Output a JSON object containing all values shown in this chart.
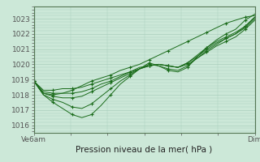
{
  "title": "Pression niveau de la mer( hPa )",
  "xlim": [
    0,
    48
  ],
  "ylim": [
    1015.5,
    1023.8
  ],
  "yticks": [
    1016,
    1017,
    1018,
    1019,
    1020,
    1021,
    1022,
    1023
  ],
  "xtick_positions": [
    0,
    48
  ],
  "xtick_labels": [
    "Ve6am",
    "Dim"
  ],
  "bg_color": "#cce8d8",
  "grid_color": "#aacfbc",
  "line_color": "#1a6b1a",
  "marker_color": "#1a6b1a",
  "series": [
    [
      1018.9,
      1018.1,
      1018.0,
      1018.1,
      1018.3,
      1018.6,
      1018.9,
      1019.1,
      1019.3,
      1019.6,
      1019.8,
      1020.0,
      1020.3,
      1020.6,
      1020.9,
      1021.2,
      1021.5,
      1021.8,
      1022.1,
      1022.4,
      1022.7,
      1022.9,
      1023.1,
      1023.2
    ],
    [
      1018.9,
      1018.0,
      1017.5,
      1017.1,
      1016.7,
      1016.5,
      1016.7,
      1017.3,
      1018.0,
      1018.7,
      1019.2,
      1019.7,
      1020.1,
      1019.9,
      1019.6,
      1019.5,
      1019.8,
      1020.5,
      1021.1,
      1021.6,
      1022.0,
      1022.3,
      1022.9,
      1023.3
    ],
    [
      1018.9,
      1018.0,
      1017.7,
      1017.5,
      1017.2,
      1017.1,
      1017.4,
      1017.9,
      1018.4,
      1018.9,
      1019.3,
      1019.7,
      1020.0,
      1019.9,
      1019.7,
      1019.6,
      1019.9,
      1020.4,
      1020.9,
      1021.3,
      1021.7,
      1022.0,
      1022.5,
      1023.1
    ],
    [
      1018.9,
      1018.1,
      1017.9,
      1017.8,
      1017.8,
      1017.9,
      1018.2,
      1018.5,
      1018.8,
      1019.1,
      1019.4,
      1019.7,
      1019.9,
      1020.0,
      1019.9,
      1019.8,
      1020.1,
      1020.6,
      1021.1,
      1021.5,
      1021.8,
      1022.1,
      1022.5,
      1023.1
    ],
    [
      1018.9,
      1018.2,
      1018.1,
      1018.1,
      1018.1,
      1018.2,
      1018.4,
      1018.7,
      1018.9,
      1019.2,
      1019.5,
      1019.7,
      1019.9,
      1020.0,
      1019.9,
      1019.8,
      1020.1,
      1020.5,
      1021.0,
      1021.4,
      1021.7,
      1022.0,
      1022.4,
      1023.0
    ],
    [
      1018.9,
      1018.3,
      1018.3,
      1018.4,
      1018.4,
      1018.5,
      1018.7,
      1018.9,
      1019.1,
      1019.3,
      1019.5,
      1019.8,
      1019.9,
      1020.0,
      1019.9,
      1019.8,
      1020.0,
      1020.4,
      1020.8,
      1021.2,
      1021.5,
      1021.8,
      1022.3,
      1022.9
    ]
  ],
  "marker_x_indices": [
    0,
    2,
    4,
    6,
    8,
    10,
    12,
    14,
    16,
    18,
    20,
    22
  ],
  "title_fontsize": 7.5,
  "tick_fontsize": 6.5
}
